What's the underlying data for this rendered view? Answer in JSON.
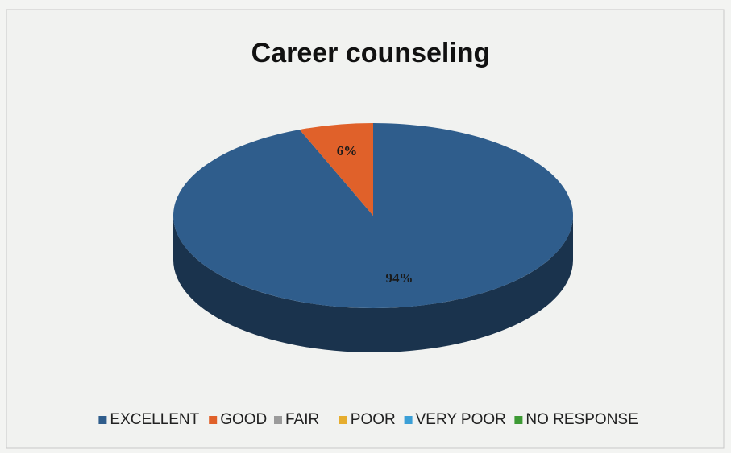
{
  "chart_data": {
    "type": "pie",
    "title": "Career counseling",
    "categories": [
      "EXCELLENT",
      "GOOD",
      "FAIR",
      "POOR",
      "VERY POOR",
      "NO RESPONSE"
    ],
    "values": [
      94,
      6,
      0,
      0,
      0,
      0
    ],
    "value_labels": [
      "94%",
      "6%",
      null,
      null,
      null,
      null
    ],
    "colors": [
      "#2f5d8c",
      "#e0612a",
      "#9b9b9b",
      "#e6ad2e",
      "#3b9fd6",
      "#3d9a34"
    ],
    "legend": "bottom"
  }
}
